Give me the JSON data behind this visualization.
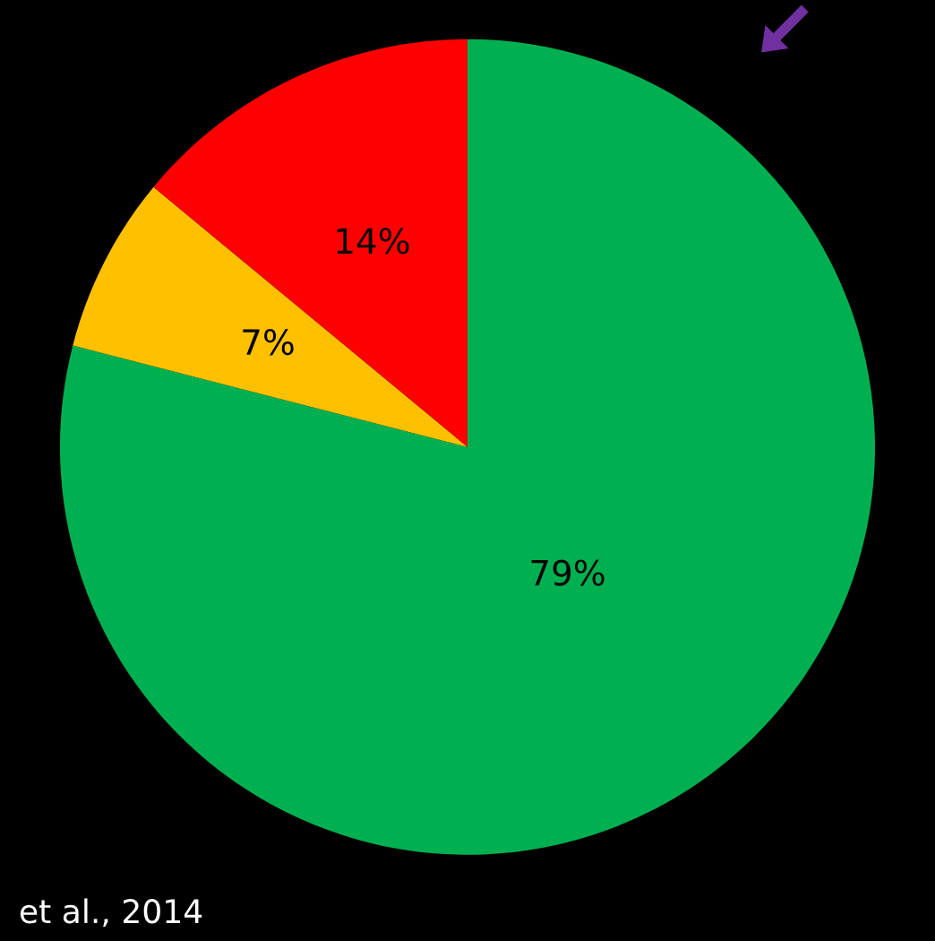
{
  "chart_data": {
    "type": "pie",
    "categories": [
      null,
      null,
      null
    ],
    "values": [
      79,
      7,
      14
    ],
    "colors": [
      "#00b050",
      "#ffc000",
      "#ff0000"
    ],
    "value_labels": [
      "79%",
      "7%",
      "14%"
    ],
    "annotations": [
      "et al., 2014"
    ]
  }
}
